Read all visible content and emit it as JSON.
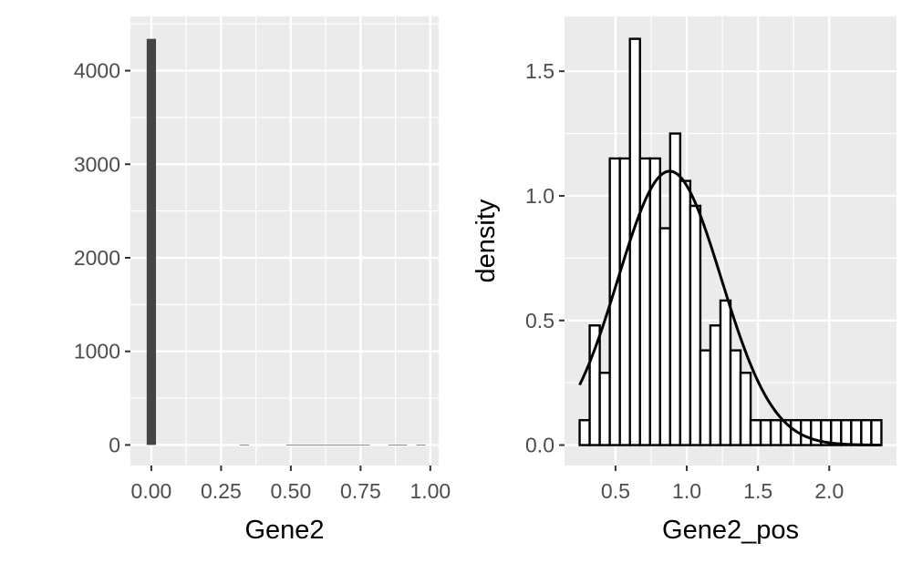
{
  "chart_data": [
    {
      "type": "bar",
      "panel": "left",
      "xlabel": "Gene2",
      "ylabel": "",
      "xlim": [
        -0.075,
        1.03
      ],
      "ylim": [
        -220,
        4580
      ],
      "x_ticks": [
        0,
        0.25,
        0.5,
        0.75,
        1
      ],
      "x_tick_labels": [
        "0.00",
        "0.25",
        "0.50",
        "0.75",
        "1.00"
      ],
      "y_ticks": [
        0,
        1000,
        2000,
        3000,
        4000
      ],
      "y_tick_labels": [
        "0",
        "1000",
        "2000",
        "3000",
        "4000"
      ],
      "bin_width": 0.0333,
      "bins": [
        {
          "center": 0.0,
          "count": 4340
        },
        {
          "center": 0.3333,
          "count": 4
        },
        {
          "center": 0.5,
          "count": 3
        },
        {
          "center": 0.5333,
          "count": 3
        },
        {
          "center": 0.5667,
          "count": 3
        },
        {
          "center": 0.6,
          "count": 3
        },
        {
          "center": 0.6333,
          "count": 3
        },
        {
          "center": 0.6667,
          "count": 3
        },
        {
          "center": 0.7,
          "count": 3
        },
        {
          "center": 0.7333,
          "count": 3
        },
        {
          "center": 0.7667,
          "count": 3
        },
        {
          "center": 0.8667,
          "count": 2
        },
        {
          "center": 0.9,
          "count": 2
        },
        {
          "center": 0.9667,
          "count": 2
        }
      ],
      "bar_color": "#444444",
      "grid": true,
      "panel_background": "#ebebeb"
    },
    {
      "type": "bar",
      "panel": "right",
      "subtype": "density histogram with normal curve",
      "xlabel": "Gene2_pos",
      "ylabel": "density",
      "xlim": [
        0.142,
        2.472
      ],
      "ylim": [
        -0.082,
        1.72
      ],
      "x_ticks": [
        0.5,
        1.0,
        1.5,
        2.0
      ],
      "x_tick_labels": [
        "0.5",
        "1.0",
        "1.5",
        "2.0"
      ],
      "y_ticks": [
        0.0,
        0.5,
        1.0,
        1.5
      ],
      "y_tick_labels": [
        "0.0",
        "0.5",
        "1.0",
        "1.5"
      ],
      "bin_start": 0.248,
      "bin_width": 0.0706,
      "densities": [
        0.1,
        0.48,
        0.29,
        1.15,
        1.15,
        1.63,
        1.15,
        1.15,
        0.87,
        1.25,
        1.06,
        0.96,
        0.38,
        0.48,
        0.58,
        0.38,
        0.29,
        0.1,
        0.1,
        0.1,
        0.1,
        0.1,
        0.1,
        0.1,
        0.1,
        0.1,
        0.1,
        0.1,
        0.1,
        0.1
      ],
      "bar_fill": "#ffffff",
      "bar_outline": "#000000",
      "normal_curve": {
        "mean": 0.88,
        "sd": 0.363
      },
      "grid": true,
      "panel_background": "#ebebeb"
    }
  ]
}
